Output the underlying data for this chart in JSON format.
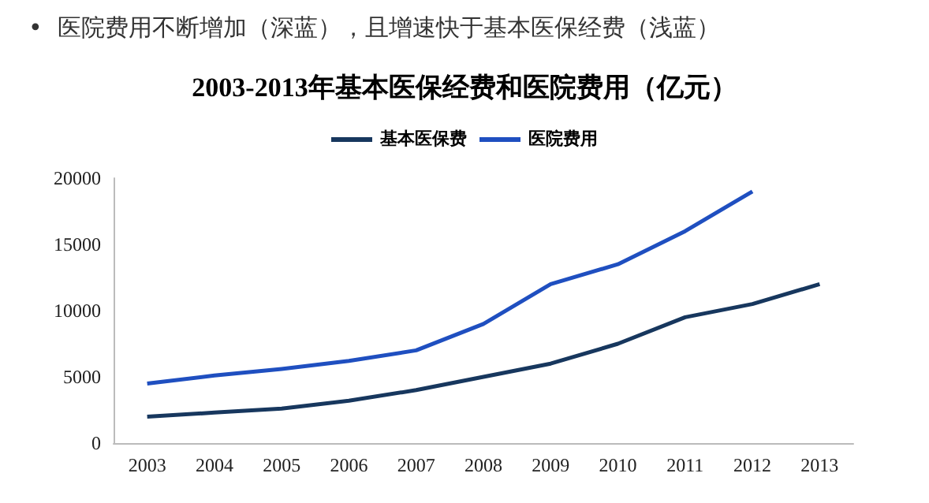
{
  "chart_data": {
    "type": "line",
    "title": "2003-2013年基本医保经费和医院费用（亿元）",
    "annotations": [
      "•  医院费用不断增加（深蓝），且增速快于基本医保经费（浅蓝）"
    ],
    "categories": [
      "2003",
      "2004",
      "2005",
      "2006",
      "2007",
      "2008",
      "2009",
      "2010",
      "2011",
      "2012",
      "2013"
    ],
    "series": [
      {
        "name": "基本医保费",
        "color": "#17375e",
        "values": [
          2000,
          2300,
          2600,
          3200,
          4000,
          5000,
          6000,
          7500,
          9500,
          10500,
          12000
        ]
      },
      {
        "name": "医院费用",
        "color": "#1f4fc0",
        "values": [
          4500,
          5100,
          5600,
          6200,
          7000,
          9000,
          12000,
          13500,
          16000,
          19000,
          null
        ]
      }
    ],
    "ylim": [
      0,
      20000
    ],
    "yticks": [
      0,
      5000,
      10000,
      15000,
      20000
    ],
    "grid": false,
    "legend": "top",
    "marker": "none",
    "line_style": "solid"
  }
}
